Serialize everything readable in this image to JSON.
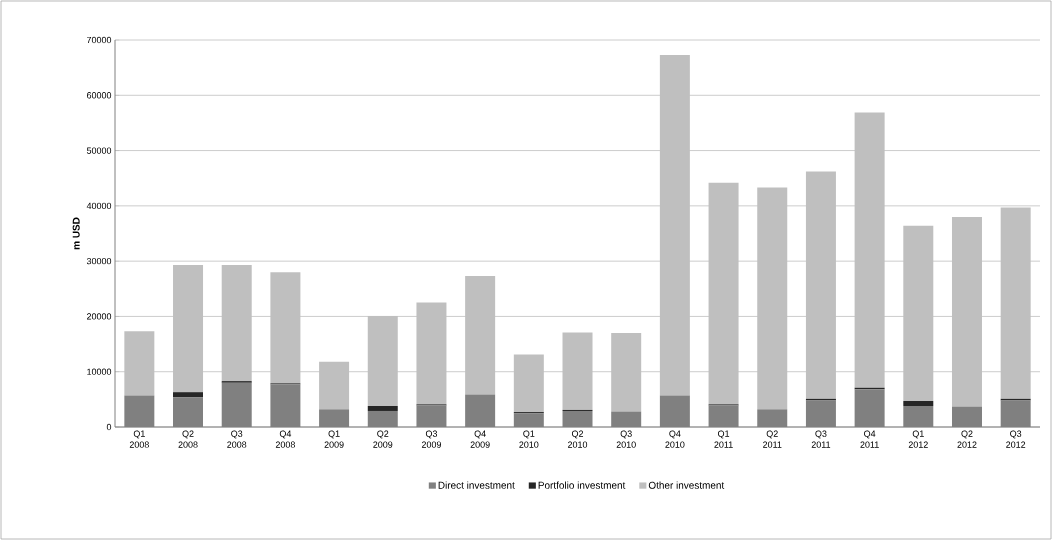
{
  "chart_data": {
    "type": "bar",
    "stacked": true,
    "ylabel": "m USD",
    "categories": [
      "Q1 2008",
      "Q2 2008",
      "Q3 2008",
      "Q4 2008",
      "Q1 2009",
      "Q2 2009",
      "Q3 2009",
      "Q4 2009",
      "Q1 2010",
      "Q2 2010",
      "Q3 2010",
      "Q4 2010",
      "Q1 2011",
      "Q2 2011",
      "Q3 2011",
      "Q4 2011",
      "Q1 2012",
      "Q2 2012",
      "Q3 2012"
    ],
    "series": [
      {
        "name": "Direct investment",
        "color": "#808080",
        "values": [
          5700,
          5400,
          8000,
          7700,
          3200,
          2900,
          3900,
          5900,
          2500,
          2900,
          2800,
          5700,
          3900,
          3200,
          4800,
          6800,
          3800,
          3700,
          4800
        ]
      },
      {
        "name": "Portfolio investment",
        "color": "#262626",
        "values": [
          0,
          900,
          300,
          200,
          0,
          900,
          200,
          null,
          200,
          200,
          0,
          0,
          200,
          0,
          300,
          300,
          900,
          0,
          300
        ]
      },
      {
        "name": "Other investment",
        "color": "#bfbfbf",
        "values": [
          11600,
          23000,
          21000,
          20100,
          8600,
          16300,
          18400,
          21400,
          10400,
          14000,
          14200,
          61600,
          40100,
          40100,
          41100,
          49800,
          31700,
          34300,
          34600
        ]
      }
    ],
    "ylim": [
      0,
      70000
    ],
    "yticks": [
      0,
      10000,
      20000,
      30000,
      40000,
      50000,
      60000,
      70000
    ],
    "grid": "y",
    "legend": "bottom"
  }
}
